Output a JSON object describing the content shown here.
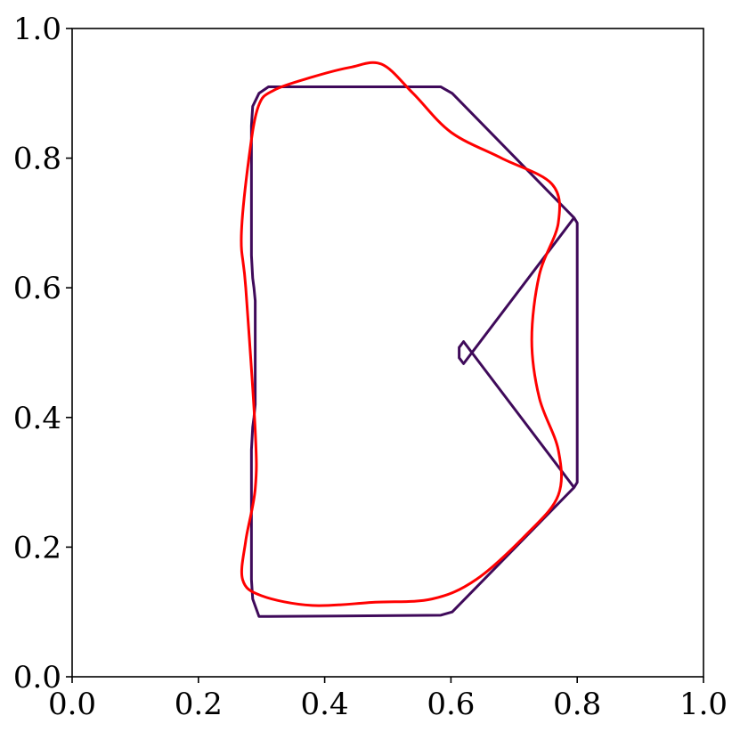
{
  "chart_data": {
    "type": "line",
    "title": "",
    "xlabel": "",
    "ylabel": "",
    "xlim": [
      0.0,
      1.0
    ],
    "ylim": [
      0.0,
      1.0
    ],
    "grid": false,
    "legend": "none",
    "x_ticks": [
      0.0,
      0.2,
      0.4,
      0.6,
      0.8,
      1.0
    ],
    "y_ticks": [
      0.0,
      0.2,
      0.4,
      0.6,
      0.8,
      1.0
    ],
    "x_tick_labels": [
      "0.0",
      "0.2",
      "0.4",
      "0.6",
      "0.8",
      "1.0"
    ],
    "y_tick_labels": [
      "0.0",
      "0.2",
      "0.4",
      "0.6",
      "0.8",
      "1.0"
    ],
    "series": [
      {
        "color": "#3f0a5a",
        "closed": true,
        "smoothing": "none",
        "x": [
          0.311,
          0.584,
          0.602,
          0.795,
          0.8,
          0.8,
          0.795,
          0.62,
          0.613,
          0.613,
          0.62,
          0.795,
          0.8,
          0.8,
          0.795,
          0.602,
          0.584,
          0.311,
          0.296,
          0.286,
          0.284,
          0.284,
          0.286,
          0.288,
          0.29,
          0.29,
          0.288,
          0.286,
          0.284,
          0.284,
          0.286,
          0.296
        ],
        "y": [
          0.91,
          0.91,
          0.9,
          0.708,
          0.7,
          0.3,
          0.292,
          0.517,
          0.508,
          0.492,
          0.483,
          0.708,
          0.7,
          0.3,
          0.292,
          0.1,
          0.095,
          0.093,
          0.093,
          0.12,
          0.15,
          0.35,
          0.385,
          0.4,
          0.42,
          0.58,
          0.6,
          0.615,
          0.65,
          0.85,
          0.88,
          0.9
        ]
      },
      {
        "color": "#ff0000",
        "closed": true,
        "smoothing": "catmull-rom",
        "x": [
          0.32,
          0.38,
          0.44,
          0.49,
          0.54,
          0.6,
          0.68,
          0.76,
          0.77,
          0.74,
          0.728,
          0.74,
          0.77,
          0.77,
          0.72,
          0.64,
          0.57,
          0.48,
          0.38,
          0.3,
          0.27,
          0.275,
          0.29,
          0.29,
          0.275,
          0.268,
          0.28,
          0.295
        ],
        "y": [
          0.905,
          0.925,
          0.94,
          0.945,
          0.9,
          0.84,
          0.8,
          0.76,
          0.7,
          0.62,
          0.52,
          0.43,
          0.35,
          0.28,
          0.22,
          0.15,
          0.12,
          0.115,
          0.11,
          0.125,
          0.15,
          0.21,
          0.29,
          0.38,
          0.6,
          0.68,
          0.8,
          0.88
        ]
      }
    ]
  }
}
